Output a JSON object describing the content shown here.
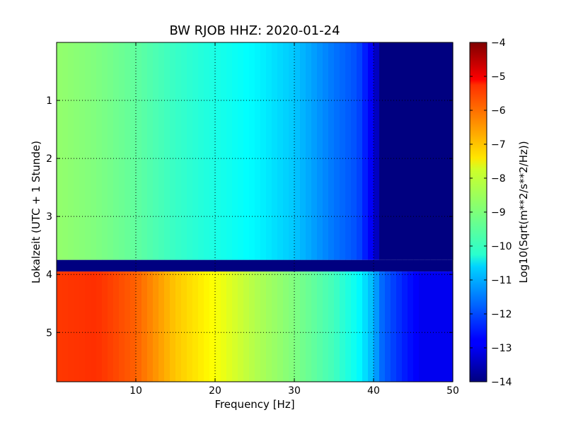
{
  "chart_data": {
    "type": "heatmap",
    "title": "BW RJOB HHZ: 2020-01-24",
    "xlabel": "Frequency [Hz]",
    "ylabel": "Lokalzeit (UTC + 1 Stunde)",
    "colorbar_label": "Log10(Sqrt(m**2/s**2/Hz))",
    "xlim": [
      0,
      50
    ],
    "ylim": [
      5.85,
      0
    ],
    "x_ticks": [
      10,
      20,
      30,
      40,
      50
    ],
    "y_ticks": [
      1,
      2,
      3,
      4,
      5
    ],
    "colorbar_range": [
      -14,
      -4
    ],
    "colorbar_ticks": [
      -4,
      -5,
      -6,
      -7,
      -8,
      -9,
      -10,
      -11,
      -12,
      -13,
      -14
    ],
    "colormap": "jet",
    "grid": true,
    "gap_band_hours": [
      3.75,
      3.95
    ],
    "profile_frequency_hz": [
      0,
      5,
      10,
      15,
      20,
      25,
      30,
      35,
      38,
      40,
      41,
      42,
      44,
      46,
      50
    ],
    "profile_before_gap": [
      -8.8,
      -9.0,
      -9.3,
      -9.7,
      -10.0,
      -10.3,
      -10.8,
      -11.6,
      -12.0,
      -13.0,
      -14,
      -14,
      -14,
      -14,
      -14
    ],
    "profile_after_gap": [
      -5.8,
      -5.7,
      -6.2,
      -7.2,
      -7.8,
      -8.5,
      -9.0,
      -9.6,
      -10.2,
      -11.0,
      -11.7,
      -12.0,
      -12.5,
      -12.9,
      -12.9
    ]
  }
}
